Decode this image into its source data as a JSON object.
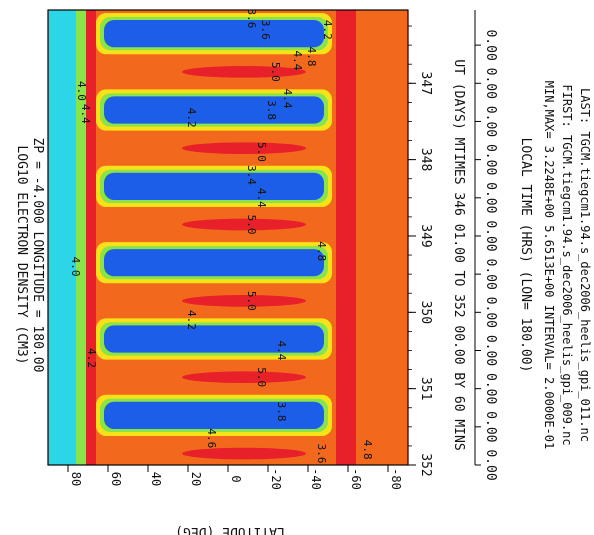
{
  "chart_data": {
    "type": "heatmap",
    "title": "LOG10 ELECTRON DENSITY (CM3)",
    "subtitle": "ZP =      -4.000 LONGITUDE =    180.00",
    "xlabel": "UT (DAYS) MTIMES 346 01.00 TO 352 00.00 BY     60 MINS",
    "ylabel": "LATITUDE (DEG)",
    "top_axis_label": "LOCAL TIME (HRS) (LON= 180.00)",
    "xlim": [
      346.04,
      352.0
    ],
    "ylim": [
      -90,
      90
    ],
    "x_ticks": [
      "347",
      "348",
      "349",
      "350",
      "351",
      "352"
    ],
    "y_ticks": [
      "80",
      "60",
      "40",
      "20",
      "0",
      "-20",
      "-40",
      "-60",
      "-80"
    ],
    "top_ticks": [
      "0.00",
      "0.00",
      "0.00",
      "0.00",
      "0.00",
      "0.00",
      "0.00",
      "0.00",
      "0.00",
      "0.00",
      "0.00",
      "0.00"
    ],
    "minmax_line": "MIN,MAX=  3.2248E+00  5.6513E+00 INTERVAL=  2.0000E-01",
    "first_line": "FIRST: TGCM.tiegcm1.94.s_dec2006_heelis_gpi_009.nc",
    "last_line": "LAST:  TGCM.tiegcm1.94.s_dec2006_heelis_gpi_011.nc",
    "min": 3.2248,
    "max": 5.6513,
    "interval": 0.2,
    "contour_labels": [
      {
        "text": "3.6",
        "day": 346.3,
        "lat": -17
      },
      {
        "text": "4.4",
        "day": 346.7,
        "lat": -33
      },
      {
        "text": "5.0",
        "day": 346.85,
        "lat": -22
      },
      {
        "text": "4.8",
        "day": 346.65,
        "lat": -40
      },
      {
        "text": "4.2",
        "day": 346.3,
        "lat": -48
      },
      {
        "text": "3.6",
        "day": 346.15,
        "lat": -10
      },
      {
        "text": "3.8",
        "day": 347.35,
        "lat": -20
      },
      {
        "text": "4.2",
        "day": 347.45,
        "lat": 20
      },
      {
        "text": "4.4",
        "day": 347.2,
        "lat": -28
      },
      {
        "text": "5.0",
        "day": 347.9,
        "lat": -15
      },
      {
        "text": "3.4",
        "day": 348.2,
        "lat": -10
      },
      {
        "text": "4.4",
        "day": 348.5,
        "lat": -15
      },
      {
        "text": "5.0",
        "day": 348.85,
        "lat": -10
      },
      {
        "text": "4.8",
        "day": 349.2,
        "lat": -45
      },
      {
        "text": "5.0",
        "day": 349.85,
        "lat": -10
      },
      {
        "text": "4.2",
        "day": 350.1,
        "lat": 20
      },
      {
        "text": "4.4",
        "day": 350.5,
        "lat": -25
      },
      {
        "text": "5.0",
        "day": 350.85,
        "lat": -15
      },
      {
        "text": "3.8",
        "day": 351.3,
        "lat": -25
      },
      {
        "text": "4.6",
        "day": 351.65,
        "lat": 10
      },
      {
        "text": "3.6",
        "day": 351.85,
        "lat": -45
      },
      {
        "text": "4.8",
        "day": 351.8,
        "lat": -68
      },
      {
        "text": "4.0",
        "day": 347.1,
        "lat": 75
      },
      {
        "text": "4.4",
        "day": 347.4,
        "lat": 73
      },
      {
        "text": "4.0",
        "day": 349.4,
        "lat": 78
      },
      {
        "text": "4.2",
        "day": 350.6,
        "lat": 70
      }
    ]
  }
}
